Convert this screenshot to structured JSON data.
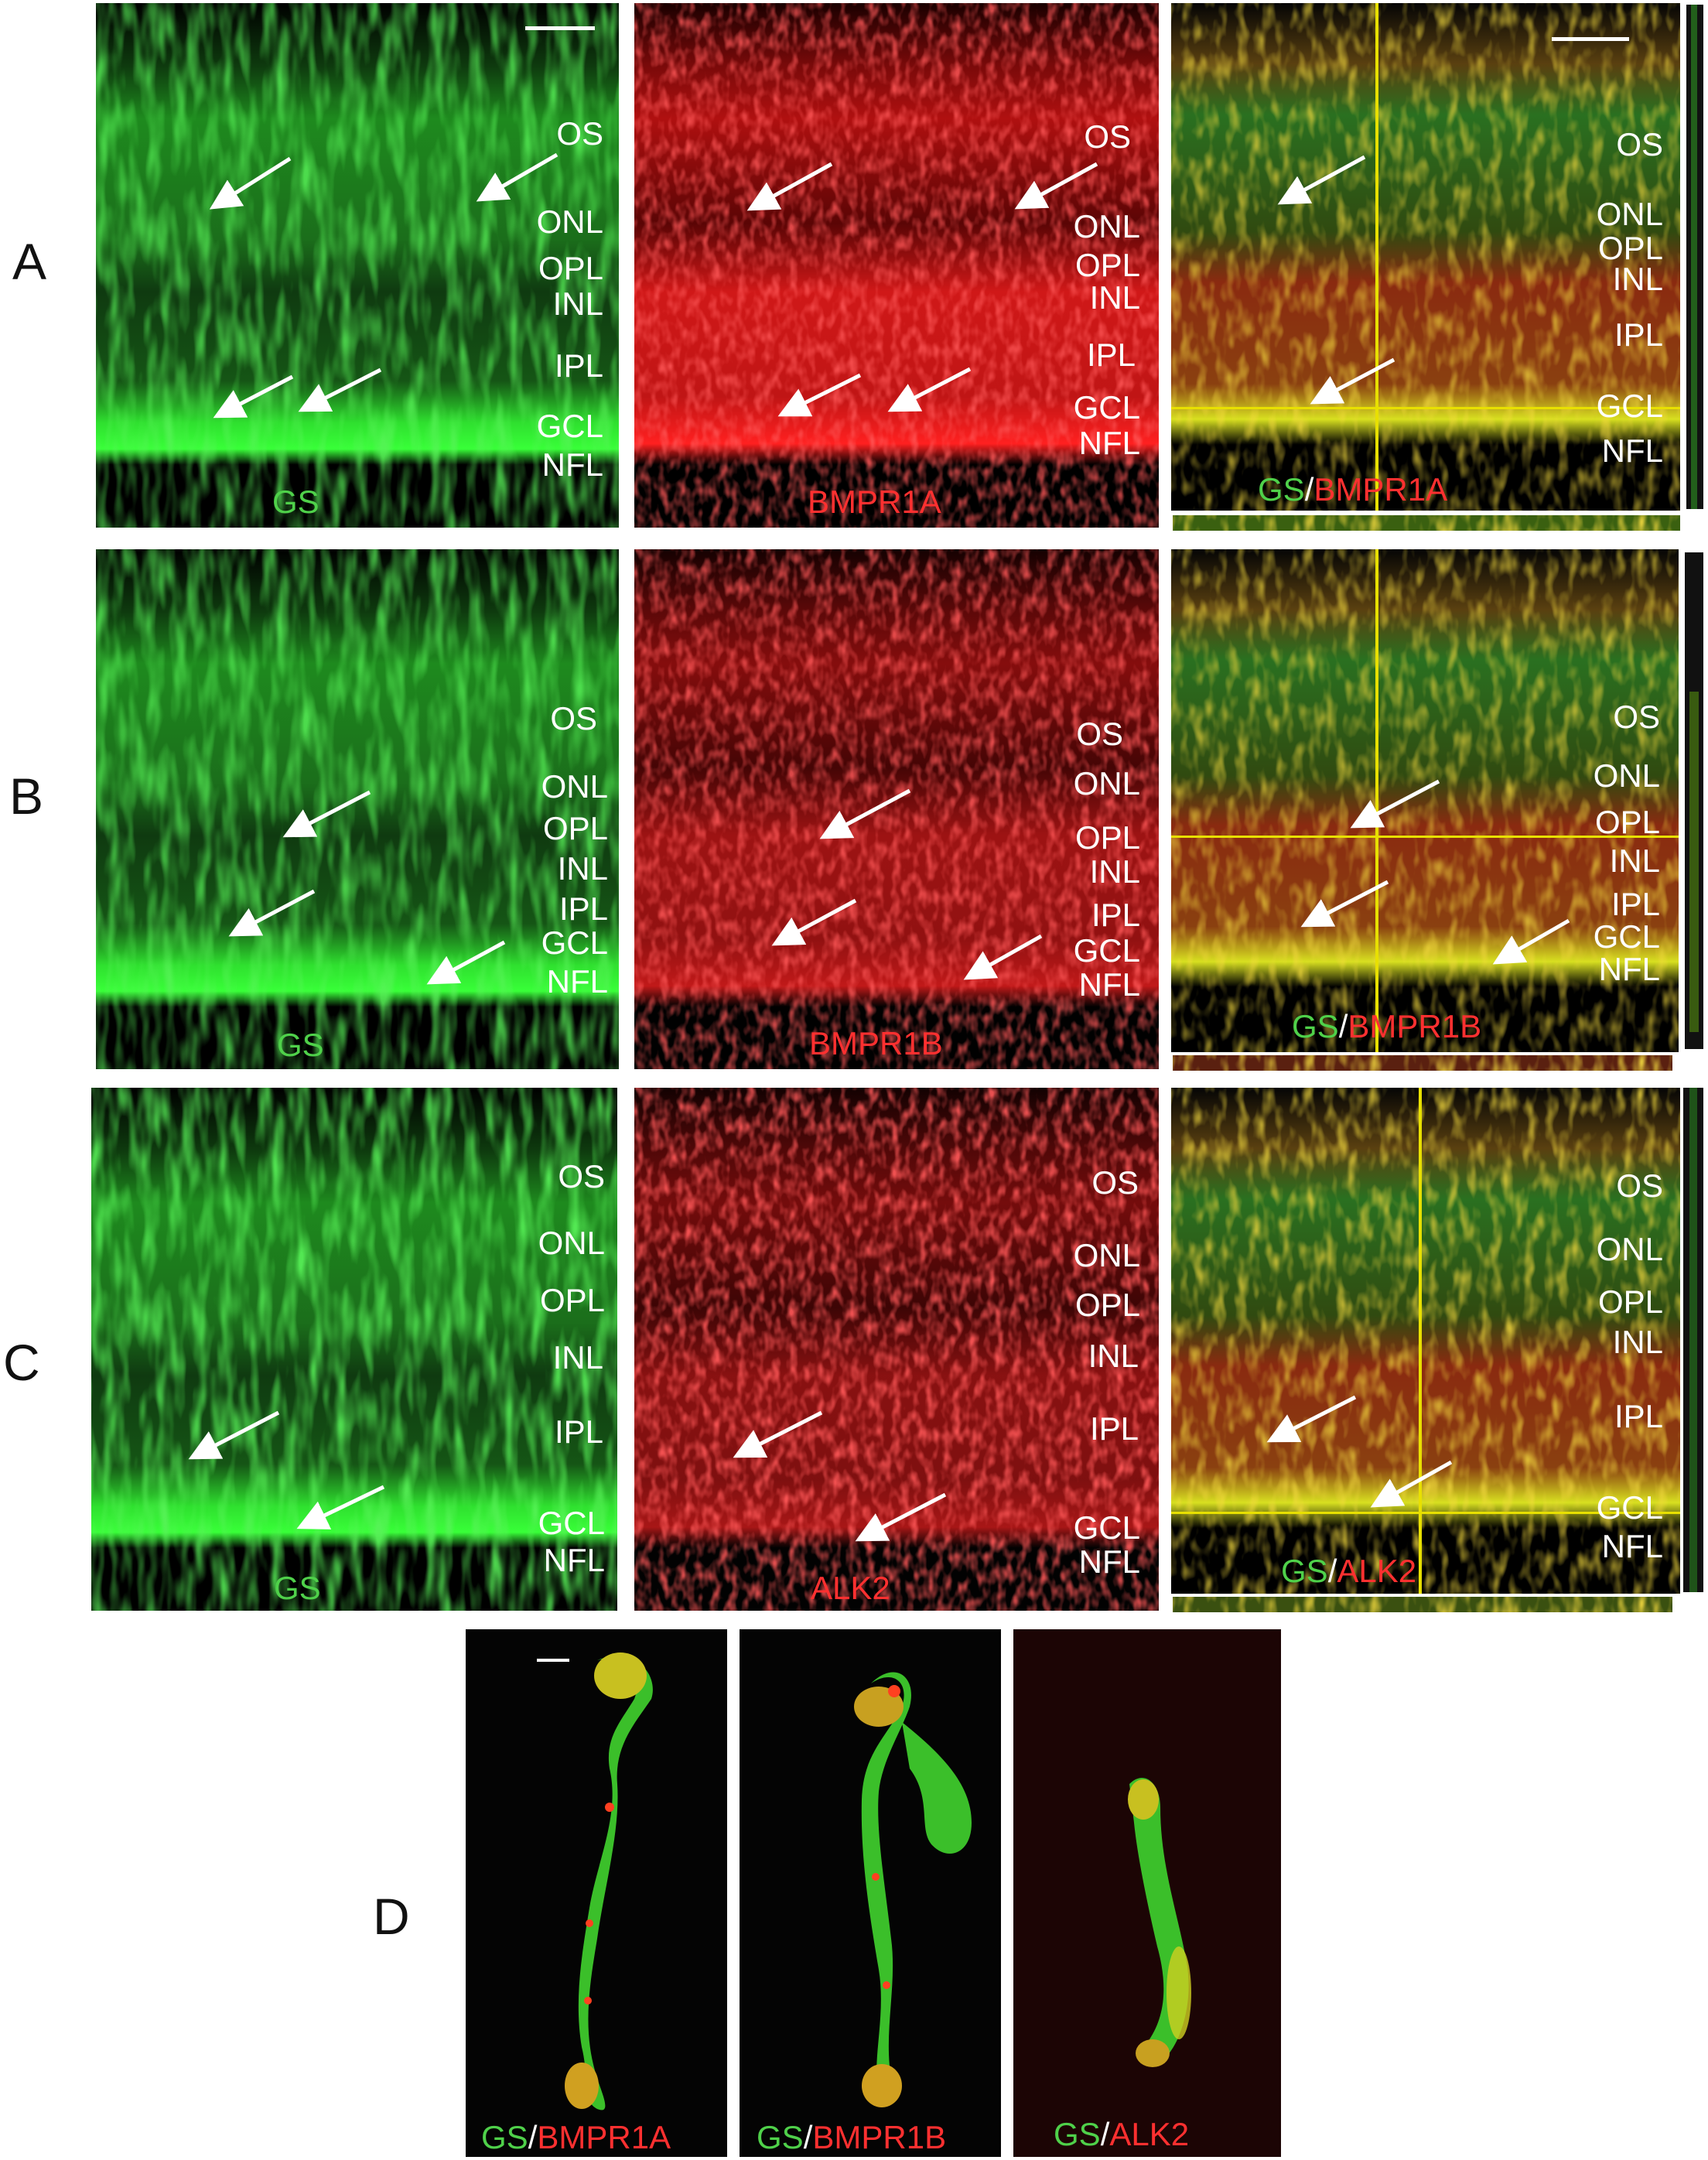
{
  "rows": {
    "A": {
      "letter": "A",
      "stain1": "GS",
      "stain2": "BMPR1A",
      "separator": "/",
      "layers": [
        "OS",
        "ONL",
        "OPL",
        "INL",
        "IPL",
        "GCL",
        "NFL"
      ]
    },
    "B": {
      "letter": "B",
      "stain1": "GS",
      "stain2": "BMPR1B",
      "separator": "/",
      "layers": [
        "OS",
        "ONL",
        "OPL",
        "INL",
        "IPL",
        "GCL",
        "NFL"
      ]
    },
    "C": {
      "letter": "C",
      "stain1": "GS",
      "stain2": "ALK2",
      "separator": "/",
      "layers": [
        "OS",
        "ONL",
        "OPL",
        "INL",
        "IPL",
        "GCL",
        "NFL"
      ]
    },
    "D": {
      "letter": "D",
      "cells": [
        {
          "stain1": "GS",
          "stain2": "BMPR1A"
        },
        {
          "stain1": "GS",
          "stain2": "BMPR1B"
        },
        {
          "stain1": "GS",
          "stain2": "ALK2"
        }
      ]
    }
  },
  "colors": {
    "green_channel": "#4fd14a",
    "red_channel": "#ff3030",
    "crosshair": "#e8e000",
    "panel_background": "#050505"
  }
}
